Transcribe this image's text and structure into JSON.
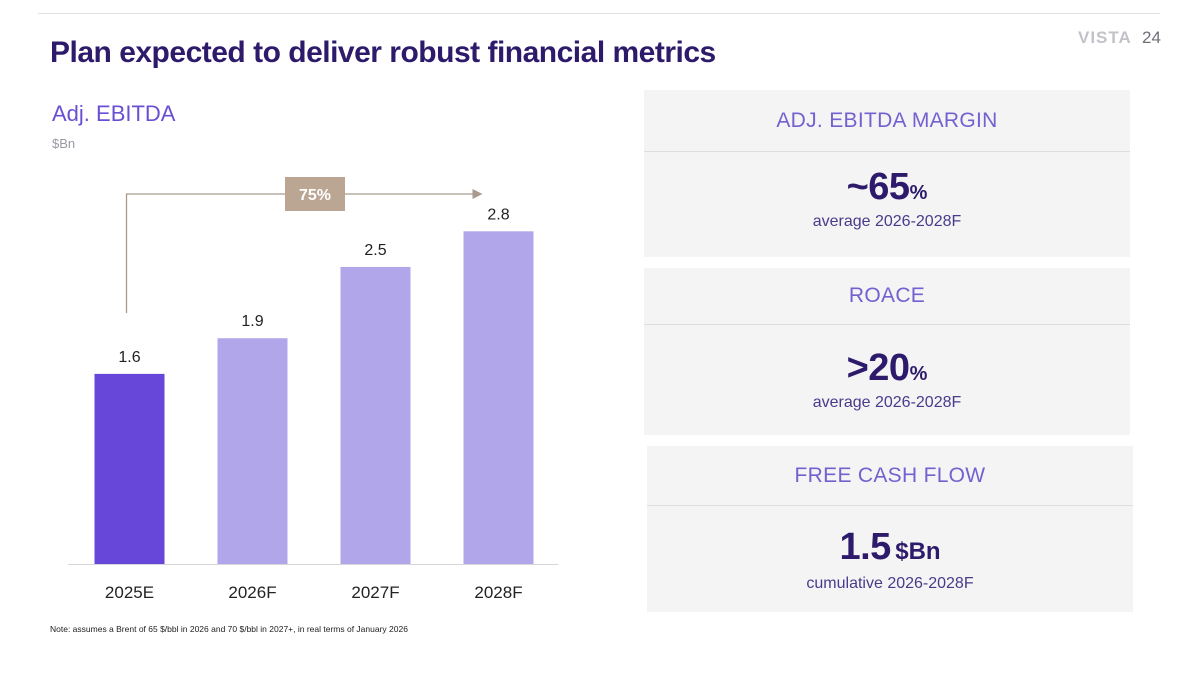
{
  "header": {
    "title": "Plan expected to deliver robust financial metrics",
    "brand": "VISTA",
    "page_number": "24"
  },
  "chart": {
    "title": "Adj. EBITDA",
    "unit": "$Bn"
  },
  "chart_data": {
    "type": "bar",
    "title": "Adj. EBITDA",
    "ylabel": "$Bn",
    "xlabel": "",
    "categories": [
      "2025E",
      "2026F",
      "2027F",
      "2028F"
    ],
    "values": [
      1.6,
      1.9,
      2.5,
      2.8
    ],
    "data_labels": [
      "1.6",
      "1.9",
      "2.5",
      "2.8"
    ],
    "ylim": [
      0,
      3.4
    ],
    "grid": false,
    "annotation": {
      "label": "75%",
      "from": "2025E",
      "to": "2028F"
    }
  },
  "colors": {
    "highlight_bar": "#6647d9",
    "bar": "#b1a6ea",
    "annotation_box": "#bba693",
    "arrow": "#a99a8c"
  },
  "metrics": [
    {
      "label": "ADJ. EBITDA MARGIN",
      "value": "~65",
      "suffix": "%",
      "sub": "average 2026-2028F"
    },
    {
      "label": "ROACE",
      "value": ">20",
      "suffix": "%",
      "sub": "average 2026-2028F"
    },
    {
      "label": "FREE CASH FLOW",
      "value": "1.5",
      "suffix": "$Bn",
      "sub": "cumulative 2026-2028F"
    }
  ],
  "footer": {
    "note": "Note: assumes a Brent of 65 $/bbl in 2026 and 70 $/bbl in 2027+, in real terms of January 2026"
  }
}
